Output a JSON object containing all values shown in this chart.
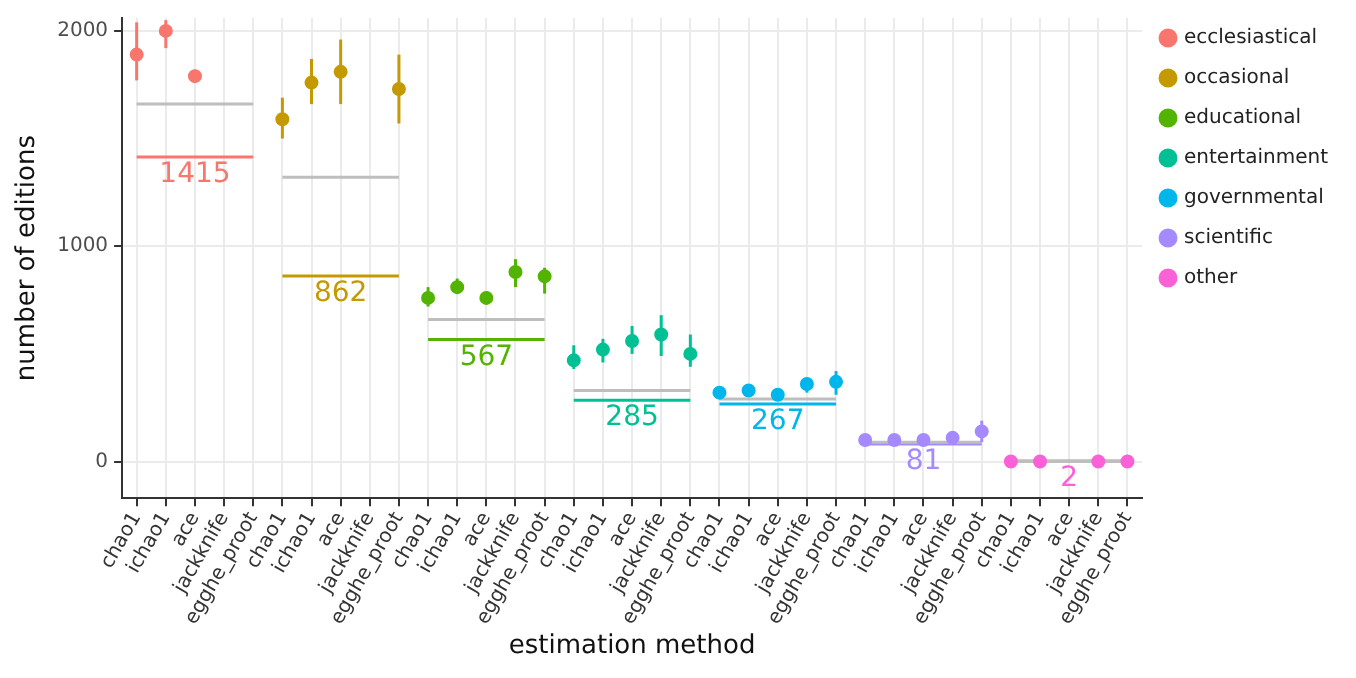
{
  "chart_data": {
    "type": "line",
    "xlabel": "estimation method",
    "ylabel": "number of editions",
    "categories": [
      "chao1",
      "ichao1",
      "ace",
      "jackknife",
      "egghe_proot",
      "chao1",
      "ichao1",
      "ace",
      "jackknife",
      "egghe_proot",
      "chao1",
      "ichao1",
      "ace",
      "jackknife",
      "egghe_proot",
      "chao1",
      "ichao1",
      "ace",
      "jackknife",
      "egghe_proot",
      "chao1",
      "ichao1",
      "ace",
      "jackknife",
      "egghe_proot",
      "chao1",
      "ichao1",
      "ace",
      "jackknife",
      "egghe_proot",
      "chao1",
      "ichao1",
      "ace",
      "jackknife",
      "egghe_proot"
    ],
    "ylim": [
      -170,
      2060
    ],
    "yticks": [
      0,
      1000,
      2000
    ],
    "grid": true,
    "legend": "right",
    "series": [
      {
        "type": "scatter",
        "marker": "circle",
        "name": "ecclesiastical",
        "color": "#f8766d",
        "values": [
          1890,
          2000,
          1790,
          null,
          null,
          null,
          null,
          null,
          null,
          null,
          null,
          null,
          null,
          null,
          null,
          null,
          null,
          null,
          null,
          null,
          null,
          null,
          null,
          null,
          null,
          null,
          null,
          null,
          null,
          null,
          null,
          null,
          null,
          null,
          null
        ],
        "errors": [
          [
            1770,
            2040
          ],
          [
            1920,
            2050
          ],
          [
            1770,
            1820
          ],
          null,
          null,
          null,
          null,
          null,
          null,
          null,
          null,
          null,
          null,
          null,
          null,
          null,
          null,
          null,
          null,
          null,
          null,
          null,
          null,
          null,
          null,
          null,
          null,
          null,
          null,
          null,
          null,
          null,
          null,
          null,
          null
        ]
      },
      {
        "type": "scatter",
        "marker": "circle",
        "name": "occasional",
        "color": "#c49a00",
        "values": [
          null,
          null,
          null,
          null,
          null,
          1590,
          1760,
          1810,
          null,
          1730,
          null,
          null,
          null,
          null,
          null,
          null,
          null,
          null,
          null,
          null,
          null,
          null,
          null,
          null,
          null,
          null,
          null,
          null,
          null,
          null,
          null,
          null,
          null,
          null,
          null
        ],
        "errors": [
          null,
          null,
          null,
          null,
          null,
          [
            1500,
            1690
          ],
          [
            1660,
            1870
          ],
          [
            1660,
            1960
          ],
          null,
          [
            1570,
            1890
          ],
          null,
          null,
          null,
          null,
          null,
          null,
          null,
          null,
          null,
          null,
          null,
          null,
          null,
          null,
          null,
          null,
          null,
          null,
          null,
          null,
          null,
          null,
          null,
          null,
          null
        ]
      },
      {
        "type": "scatter",
        "marker": "circle",
        "name": "educational",
        "color": "#53b400",
        "values": [
          null,
          null,
          null,
          null,
          null,
          null,
          null,
          null,
          null,
          null,
          760,
          810,
          760,
          880,
          860,
          null,
          null,
          null,
          null,
          null,
          null,
          null,
          null,
          null,
          null,
          null,
          null,
          null,
          null,
          null,
          null,
          null,
          null,
          null,
          null
        ],
        "errors": [
          null,
          null,
          null,
          null,
          null,
          null,
          null,
          null,
          null,
          null,
          [
            720,
            810
          ],
          [
            780,
            850
          ],
          [
            730,
            790
          ],
          [
            810,
            940
          ],
          [
            780,
            900
          ],
          null,
          null,
          null,
          null,
          null,
          null,
          null,
          null,
          null,
          null,
          null,
          null,
          null,
          null,
          null,
          null,
          null,
          null,
          null,
          null
        ]
      },
      {
        "type": "scatter",
        "marker": "circle",
        "name": "entertainment",
        "color": "#00c094",
        "values": [
          null,
          null,
          null,
          null,
          null,
          null,
          null,
          null,
          null,
          null,
          null,
          null,
          null,
          null,
          null,
          470,
          520,
          560,
          590,
          500,
          null,
          null,
          null,
          null,
          null,
          null,
          null,
          null,
          null,
          null,
          null,
          null,
          null,
          null,
          null
        ],
        "errors": [
          null,
          null,
          null,
          null,
          null,
          null,
          null,
          null,
          null,
          null,
          null,
          null,
          null,
          null,
          null,
          [
            430,
            540
          ],
          [
            460,
            570
          ],
          [
            500,
            630
          ],
          [
            490,
            680
          ],
          [
            440,
            590
          ],
          null,
          null,
          null,
          null,
          null,
          null,
          null,
          null,
          null,
          null,
          null,
          null,
          null,
          null,
          null
        ]
      },
      {
        "type": "scatter",
        "marker": "circle",
        "name": "governmental",
        "color": "#00b6eb",
        "values": [
          null,
          null,
          null,
          null,
          null,
          null,
          null,
          null,
          null,
          null,
          null,
          null,
          null,
          null,
          null,
          null,
          null,
          null,
          null,
          null,
          320,
          330,
          310,
          360,
          370,
          null,
          null,
          null,
          null,
          null,
          null,
          null,
          null,
          null,
          null
        ],
        "errors": [
          null,
          null,
          null,
          null,
          null,
          null,
          null,
          null,
          null,
          null,
          null,
          null,
          null,
          null,
          null,
          null,
          null,
          null,
          null,
          null,
          [
            300,
            330
          ],
          [
            310,
            350
          ],
          [
            300,
            330
          ],
          [
            320,
            390
          ],
          [
            310,
            420
          ],
          null,
          null,
          null,
          null,
          null,
          null,
          null,
          null,
          null,
          null
        ]
      },
      {
        "type": "scatter",
        "marker": "circle",
        "name": "scientific",
        "color": "#a58aff",
        "values": [
          null,
          null,
          null,
          null,
          null,
          null,
          null,
          null,
          null,
          null,
          null,
          null,
          null,
          null,
          null,
          null,
          null,
          null,
          null,
          null,
          null,
          null,
          null,
          null,
          null,
          100,
          100,
          100,
          110,
          140,
          null,
          null,
          null,
          null,
          null
        ],
        "errors": [
          null,
          null,
          null,
          null,
          null,
          null,
          null,
          null,
          null,
          null,
          null,
          null,
          null,
          null,
          null,
          null,
          null,
          null,
          null,
          null,
          null,
          null,
          null,
          null,
          null,
          [
            90,
            110
          ],
          [
            90,
            110
          ],
          [
            90,
            110
          ],
          [
            100,
            120
          ],
          [
            90,
            190
          ],
          null,
          null,
          null,
          null,
          null
        ]
      },
      {
        "type": "scatter",
        "marker": "circle",
        "name": "other",
        "color": "#fb61d7",
        "values": [
          null,
          null,
          null,
          null,
          null,
          null,
          null,
          null,
          null,
          null,
          null,
          null,
          null,
          null,
          null,
          null,
          null,
          null,
          null,
          null,
          null,
          null,
          null,
          null,
          null,
          null,
          null,
          null,
          null,
          null,
          0,
          0,
          null,
          0,
          0
        ]
      },
      {
        "type": "line",
        "marker": "none",
        "color": "#bebebe",
        "values": [
          1660,
          1660,
          1660,
          1660,
          1660,
          null,
          null,
          null,
          null,
          null,
          null,
          null,
          null,
          null,
          null,
          null,
          null,
          null,
          null,
          null,
          null,
          null,
          null,
          null,
          null,
          null,
          null,
          null,
          null,
          null,
          null,
          null,
          null,
          null,
          null
        ]
      },
      {
        "type": "line",
        "marker": "none",
        "color": "#bebebe",
        "values": [
          null,
          null,
          null,
          null,
          null,
          1320,
          1320,
          1320,
          1320,
          1320,
          null,
          null,
          null,
          null,
          null,
          null,
          null,
          null,
          null,
          null,
          null,
          null,
          null,
          null,
          null,
          null,
          null,
          null,
          null,
          null,
          null,
          null,
          null,
          null,
          null
        ]
      },
      {
        "type": "line",
        "marker": "none",
        "color": "#bebebe",
        "values": [
          null,
          null,
          null,
          null,
          null,
          null,
          null,
          null,
          null,
          null,
          660,
          660,
          660,
          660,
          660,
          null,
          null,
          null,
          null,
          null,
          null,
          null,
          null,
          null,
          null,
          null,
          null,
          null,
          null,
          null,
          null,
          null,
          null,
          null,
          null
        ]
      },
      {
        "type": "line",
        "marker": "none",
        "color": "#bebebe",
        "values": [
          null,
          null,
          null,
          null,
          null,
          null,
          null,
          null,
          null,
          null,
          null,
          null,
          null,
          null,
          null,
          330,
          330,
          330,
          330,
          330,
          null,
          null,
          null,
          null,
          null,
          null,
          null,
          null,
          null,
          null,
          null,
          null,
          null,
          null,
          null
        ]
      },
      {
        "type": "line",
        "marker": "none",
        "color": "#bebebe",
        "values": [
          null,
          null,
          null,
          null,
          null,
          null,
          null,
          null,
          null,
          null,
          null,
          null,
          null,
          null,
          null,
          null,
          null,
          null,
          null,
          null,
          290,
          290,
          290,
          290,
          290,
          null,
          null,
          null,
          null,
          null,
          null,
          null,
          null,
          null,
          null
        ]
      },
      {
        "type": "line",
        "marker": "none",
        "color": "#bebebe",
        "values": [
          null,
          null,
          null,
          null,
          null,
          null,
          null,
          null,
          null,
          null,
          null,
          null,
          null,
          null,
          null,
          null,
          null,
          null,
          null,
          null,
          null,
          null,
          null,
          null,
          null,
          90,
          90,
          90,
          90,
          90,
          null,
          null,
          null,
          null,
          null
        ]
      },
      {
        "type": "line",
        "marker": "none",
        "color": "#bebebe",
        "values": [
          null,
          null,
          null,
          null,
          null,
          null,
          null,
          null,
          null,
          null,
          null,
          null,
          null,
          null,
          null,
          null,
          null,
          null,
          null,
          null,
          null,
          null,
          null,
          null,
          null,
          null,
          null,
          null,
          null,
          null,
          0,
          0,
          0,
          0,
          0
        ]
      },
      {
        "type": "line",
        "marker": "none",
        "color": "#f8766d",
        "values": [
          1415,
          1415,
          1415,
          1415,
          1415,
          null,
          null,
          null,
          null,
          null,
          null,
          null,
          null,
          null,
          null,
          null,
          null,
          null,
          null,
          null,
          null,
          null,
          null,
          null,
          null,
          null,
          null,
          null,
          null,
          null,
          null,
          null,
          null,
          null,
          null
        ],
        "value_labels": [
          null,
          null,
          "1415",
          null,
          null,
          null,
          null,
          null,
          null,
          null,
          null,
          null,
          null,
          null,
          null,
          null,
          null,
          null,
          null,
          null,
          null,
          null,
          null,
          null,
          null,
          null,
          null,
          null,
          null,
          null,
          null,
          null,
          null,
          null,
          null
        ]
      },
      {
        "type": "line",
        "marker": "none",
        "color": "#c49a00",
        "values": [
          null,
          null,
          null,
          null,
          null,
          862,
          862,
          862,
          862,
          862,
          null,
          null,
          null,
          null,
          null,
          null,
          null,
          null,
          null,
          null,
          null,
          null,
          null,
          null,
          null,
          null,
          null,
          null,
          null,
          null,
          null,
          null,
          null,
          null,
          null
        ],
        "value_labels": [
          null,
          null,
          null,
          null,
          null,
          null,
          null,
          "862",
          null,
          null,
          null,
          null,
          null,
          null,
          null,
          null,
          null,
          null,
          null,
          null,
          null,
          null,
          null,
          null,
          null,
          null,
          null,
          null,
          null,
          null,
          null,
          null,
          null,
          null,
          null
        ]
      },
      {
        "type": "line",
        "marker": "none",
        "color": "#53b400",
        "values": [
          null,
          null,
          null,
          null,
          null,
          null,
          null,
          null,
          null,
          null,
          567,
          567,
          567,
          567,
          567,
          null,
          null,
          null,
          null,
          null,
          null,
          null,
          null,
          null,
          null,
          null,
          null,
          null,
          null,
          null,
          null,
          null,
          null,
          null,
          null
        ],
        "value_labels": [
          null,
          null,
          null,
          null,
          null,
          null,
          null,
          null,
          null,
          null,
          null,
          null,
          "567",
          null,
          null,
          null,
          null,
          null,
          null,
          null,
          null,
          null,
          null,
          null,
          null,
          null,
          null,
          null,
          null,
          null,
          null,
          null,
          null,
          null,
          null
        ]
      },
      {
        "type": "line",
        "marker": "none",
        "color": "#00c094",
        "values": [
          null,
          null,
          null,
          null,
          null,
          null,
          null,
          null,
          null,
          null,
          null,
          null,
          null,
          null,
          null,
          285,
          285,
          285,
          285,
          285,
          null,
          null,
          null,
          null,
          null,
          null,
          null,
          null,
          null,
          null,
          null,
          null,
          null,
          null,
          null
        ],
        "value_labels": [
          null,
          null,
          null,
          null,
          null,
          null,
          null,
          null,
          null,
          null,
          null,
          null,
          null,
          null,
          null,
          null,
          null,
          "285",
          null,
          null,
          null,
          null,
          null,
          null,
          null,
          null,
          null,
          null,
          null,
          null,
          null,
          null,
          null,
          null,
          null
        ]
      },
      {
        "type": "line",
        "marker": "none",
        "color": "#00b6eb",
        "values": [
          null,
          null,
          null,
          null,
          null,
          null,
          null,
          null,
          null,
          null,
          null,
          null,
          null,
          null,
          null,
          null,
          null,
          null,
          null,
          null,
          267,
          267,
          267,
          267,
          267,
          null,
          null,
          null,
          null,
          null,
          null,
          null,
          null,
          null,
          null
        ],
        "value_labels": [
          null,
          null,
          null,
          null,
          null,
          null,
          null,
          null,
          null,
          null,
          null,
          null,
          null,
          null,
          null,
          null,
          null,
          null,
          null,
          null,
          null,
          null,
          "267",
          null,
          null,
          null,
          null,
          null,
          null,
          null,
          null,
          null,
          null,
          null,
          null
        ]
      },
      {
        "type": "line",
        "marker": "none",
        "color": "#a58aff",
        "values": [
          null,
          null,
          null,
          null,
          null,
          null,
          null,
          null,
          null,
          null,
          null,
          null,
          null,
          null,
          null,
          null,
          null,
          null,
          null,
          null,
          null,
          null,
          null,
          null,
          null,
          81,
          81,
          81,
          81,
          81,
          null,
          null,
          null,
          null,
          null
        ],
        "value_labels": [
          null,
          null,
          null,
          null,
          null,
          null,
          null,
          null,
          null,
          null,
          null,
          null,
          null,
          null,
          null,
          null,
          null,
          null,
          null,
          null,
          null,
          null,
          null,
          null,
          null,
          null,
          null,
          "81",
          null,
          null,
          null,
          null,
          null,
          null,
          null
        ]
      },
      {
        "type": "line",
        "marker": "none",
        "color": "#fb61d7",
        "values": [
          null,
          null,
          null,
          null,
          null,
          null,
          null,
          null,
          null,
          null,
          null,
          null,
          null,
          null,
          null,
          null,
          null,
          null,
          null,
          null,
          null,
          null,
          null,
          null,
          null,
          null,
          null,
          null,
          null,
          null,
          2,
          2,
          2,
          2,
          2
        ],
        "value_labels": [
          null,
          null,
          null,
          null,
          null,
          null,
          null,
          null,
          null,
          null,
          null,
          null,
          null,
          null,
          null,
          null,
          null,
          null,
          null,
          null,
          null,
          null,
          null,
          null,
          null,
          null,
          null,
          null,
          null,
          null,
          null,
          null,
          "2",
          null,
          null
        ]
      }
    ]
  }
}
